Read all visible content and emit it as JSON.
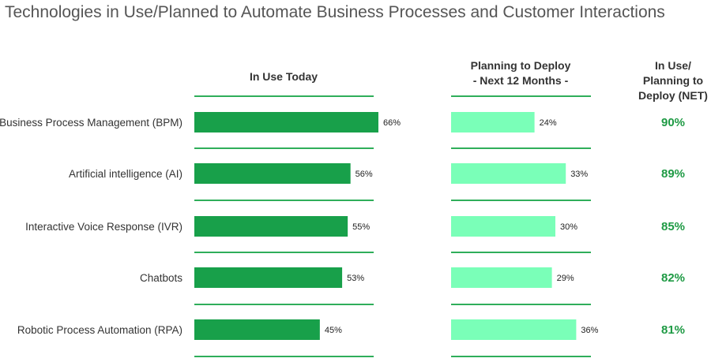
{
  "title": "Technologies in Use/Planned to Automate Business Processes and Customer Interactions",
  "colors": {
    "in_use": "#18a04a",
    "planned": "#7affb8",
    "rule": "#2fae5a",
    "net_text": "#1e9a44"
  },
  "chart_data": {
    "type": "bar",
    "categories": [
      "Business Process Management (BPM)",
      "Artificial intelligence (AI)",
      "Interactive Voice Response (IVR)",
      "Chatbots",
      "Robotic Process Automation (RPA)"
    ],
    "series": [
      {
        "name": "In Use Today",
        "values": [
          66,
          56,
          55,
          53,
          45
        ],
        "labels": [
          "66%",
          "56%",
          "55%",
          "53%",
          "45%"
        ]
      },
      {
        "name": "Planning to Deploy - Next 12 Months -",
        "values": [
          24,
          33,
          30,
          29,
          36
        ],
        "labels": [
          "24%",
          "33%",
          "30%",
          "29%",
          "36%"
        ]
      },
      {
        "name": "In Use/ Planning to Deploy (NET)",
        "values": [
          90,
          89,
          85,
          82,
          81
        ],
        "labels": [
          "90%",
          "89%",
          "85%",
          "82%",
          "81%"
        ]
      }
    ]
  },
  "headers": {
    "in_use": "In Use Today",
    "planned": [
      "Planning to Deploy",
      "- Next 12 Months -"
    ],
    "net": [
      "In Use/",
      "Planning to",
      "Deploy (NET)"
    ]
  }
}
